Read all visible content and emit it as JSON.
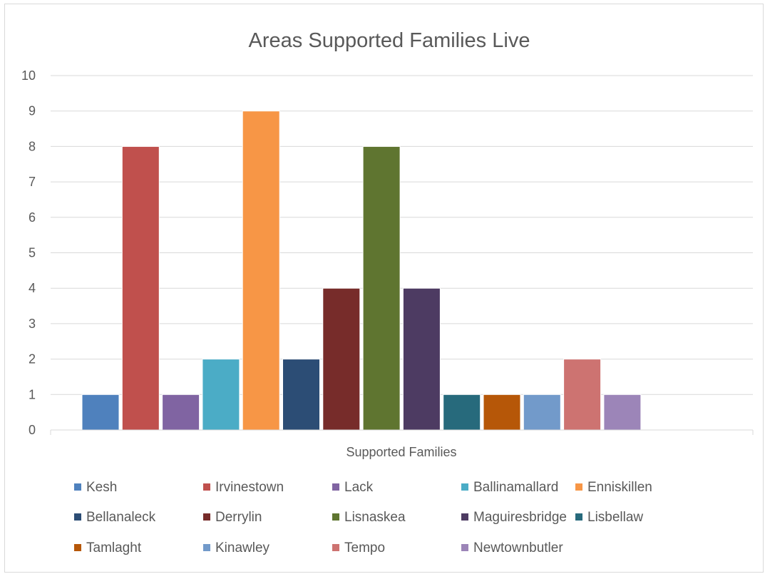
{
  "chart_data": {
    "type": "bar",
    "title": "Areas Supported Families Live",
    "xlabel": "Supported Families",
    "ylabel": "",
    "ylim": [
      0,
      10
    ],
    "yticks": [
      0,
      1,
      2,
      3,
      4,
      5,
      6,
      7,
      8,
      9,
      10
    ],
    "grid": true,
    "legend_position": "bottom",
    "categories": [
      "Supported Families"
    ],
    "series": [
      {
        "name": "Kesh",
        "value": 1,
        "color": "#4f81bd"
      },
      {
        "name": "Irvinestown",
        "value": 8,
        "color": "#c0504d"
      },
      {
        "name": "Lack",
        "value": 1,
        "color": "#8064a2"
      },
      {
        "name": "Ballinamallard",
        "value": 2,
        "color": "#4bacc6"
      },
      {
        "name": "Enniskillen",
        "value": 9,
        "color": "#f79646"
      },
      {
        "name": "Bellanaleck",
        "value": 2,
        "color": "#2c4d75"
      },
      {
        "name": "Derrylin",
        "value": 4,
        "color": "#772c2a"
      },
      {
        "name": "Lisnaskea",
        "value": 8,
        "color": "#5f7530"
      },
      {
        "name": "Maguiresbridge",
        "value": 4,
        "color": "#4d3b62"
      },
      {
        "name": "Lisbellaw",
        "value": 1,
        "color": "#276a7c"
      },
      {
        "name": "Tamlaght",
        "value": 1,
        "color": "#b65708"
      },
      {
        "name": "Kinawley",
        "value": 1,
        "color": "#729aca"
      },
      {
        "name": "Tempo",
        "value": 2,
        "color": "#cd7371"
      },
      {
        "name": "Newtownbutler",
        "value": 1,
        "color": "#9c85b8"
      }
    ]
  }
}
